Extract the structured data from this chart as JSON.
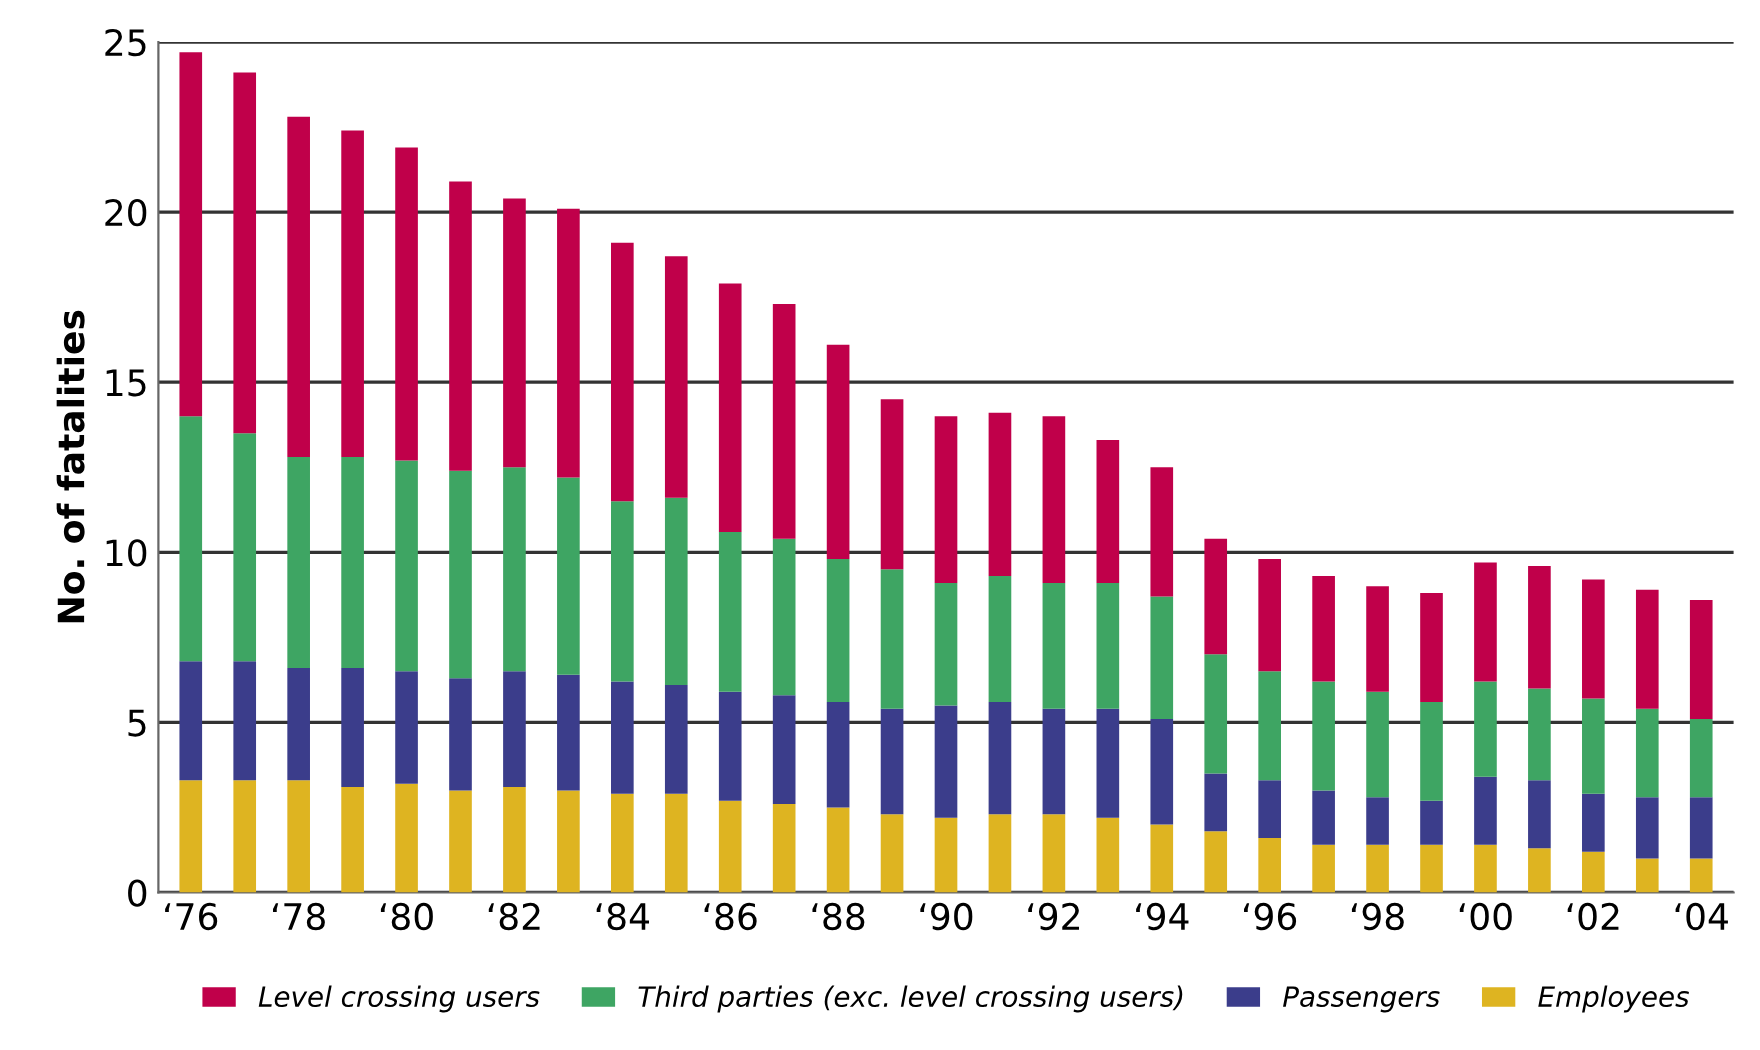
{
  "chart_data": {
    "type": "bar",
    "stacked": true,
    "ylabel": "No. of fatalities",
    "categories": [
      "‘76",
      null,
      "‘78",
      null,
      "‘80",
      null,
      "‘82",
      null,
      "‘84",
      null,
      "‘86",
      null,
      "‘88",
      null,
      "‘90",
      null,
      "‘92",
      null,
      "‘94",
      null,
      "‘96",
      null,
      "‘98",
      null,
      "‘00",
      null,
      "‘02",
      null,
      "‘04"
    ],
    "series": [
      {
        "name": "Employees",
        "color": "#deb421",
        "values": [
          3.3,
          3.3,
          3.3,
          3.1,
          3.2,
          3.0,
          3.1,
          3.0,
          2.9,
          2.9,
          2.7,
          2.6,
          2.5,
          2.3,
          2.2,
          2.3,
          2.3,
          2.2,
          2.0,
          1.8,
          1.6,
          1.4,
          1.4,
          1.4,
          1.4,
          1.3,
          1.2,
          1.0,
          1.0
        ]
      },
      {
        "name": "Passengers",
        "color": "#3b3d8b",
        "values": [
          3.5,
          3.5,
          3.3,
          3.5,
          3.3,
          3.3,
          3.4,
          3.4,
          3.3,
          3.2,
          3.2,
          3.2,
          3.1,
          3.1,
          3.3,
          3.3,
          3.1,
          3.2,
          3.1,
          1.7,
          1.7,
          1.6,
          1.4,
          1.3,
          2.0,
          2.0,
          1.7,
          1.8,
          1.8
        ]
      },
      {
        "name": "Third parties (exc. level crossing users)",
        "color": "#3ea563",
        "values": [
          7.2,
          6.7,
          6.2,
          6.2,
          6.2,
          6.1,
          6.0,
          5.8,
          5.3,
          5.5,
          4.7,
          4.6,
          4.2,
          4.1,
          3.6,
          3.7,
          3.7,
          3.7,
          3.6,
          3.5,
          3.2,
          3.2,
          3.1,
          2.9,
          2.8,
          2.7,
          2.8,
          2.6,
          2.3
        ]
      },
      {
        "name": "Level crossing users",
        "color": "#c0004a",
        "values": [
          10.7,
          10.6,
          10.0,
          9.6,
          9.2,
          8.5,
          7.9,
          7.9,
          7.6,
          7.1,
          7.3,
          6.9,
          6.3,
          5.0,
          4.9,
          4.8,
          4.9,
          4.2,
          3.8,
          3.4,
          3.3,
          3.1,
          3.1,
          3.2,
          3.5,
          3.6,
          3.5,
          3.5,
          3.5
        ]
      }
    ],
    "ylim": [
      0,
      25
    ],
    "yticks": [
      0,
      5,
      10,
      15,
      20,
      25
    ],
    "grid": "y",
    "legend": "bottom"
  }
}
